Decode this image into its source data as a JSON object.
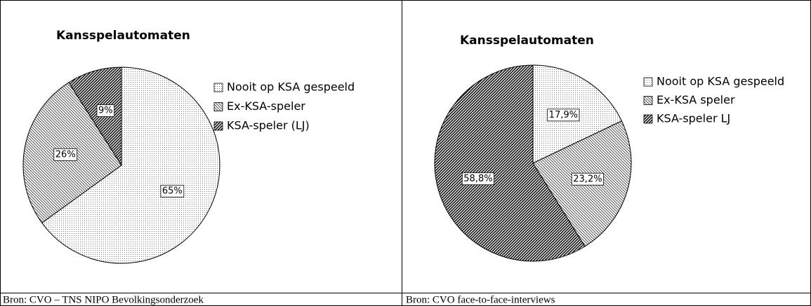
{
  "chart_data": [
    {
      "type": "pie",
      "title": "Kansspelautomaten",
      "categories": [
        "Nooit op KSA gespeeld",
        "Ex-KSA-speler",
        "KSA-speler (LJ)"
      ],
      "values": [
        65,
        26,
        9
      ],
      "value_labels": [
        "65%",
        "26%",
        "9%"
      ],
      "source": "Bron: CVO – TNS NIPO Bevolkingsonderzoek"
    },
    {
      "type": "pie",
      "title": "Kansspelautomaten",
      "categories": [
        "Nooit op KSA gespeeld",
        "Ex-KSA speler",
        "KSA-speler LJ"
      ],
      "values": [
        17.9,
        23.2,
        58.8
      ],
      "value_labels": [
        "17,9%",
        "23,2%",
        "58,8%"
      ],
      "source": "Bron: CVO face-to-face-interviews"
    }
  ]
}
